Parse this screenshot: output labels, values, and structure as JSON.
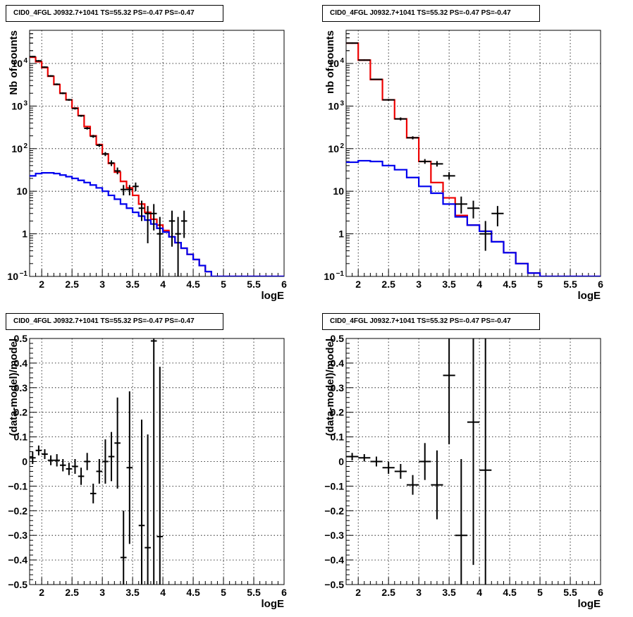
{
  "chart_data": [
    {
      "type": "line",
      "title": "CID0_4FGL J0932.7+1041 TS=55.32 PS=-0.47 PS=-0.47",
      "xlabel": "logE",
      "ylabel": "Nb of counts",
      "xlim": [
        1.8,
        6.0
      ],
      "ylim": [
        0.1,
        60000
      ],
      "yscale": "log",
      "x_ticks": [
        "2",
        "2.5",
        "3",
        "3.5",
        "4",
        "4.5",
        "5",
        "5.5",
        "6"
      ],
      "y_ticks": [
        "10^-1",
        "1",
        "10",
        "10^2",
        "10^3",
        "10^4"
      ],
      "grid": true,
      "bin_edges": [
        1.8,
        1.9,
        2.0,
        2.1,
        2.2,
        2.3,
        2.4,
        2.5,
        2.6,
        2.7,
        2.8,
        2.9,
        3.0,
        3.1,
        3.2,
        3.3,
        3.4,
        3.5,
        3.6,
        3.7,
        3.8,
        3.9,
        4.0,
        4.1,
        4.2,
        4.3,
        4.4,
        4.5,
        4.6,
        4.7,
        4.8,
        4.9,
        5.0,
        5.1,
        5.2,
        5.3,
        5.4,
        5.5,
        5.6,
        5.7,
        5.8,
        5.9,
        6.0
      ],
      "series": [
        {
          "color": "#ee0000",
          "style": "histogram",
          "values": [
            14000,
            11000,
            8000,
            5000,
            3200,
            2000,
            1400,
            900,
            600,
            330,
            200,
            125,
            75,
            45,
            28,
            17,
            12,
            8,
            5,
            3.2,
            2.2,
            1.6,
            1.2,
            0.85,
            0.62,
            0.46,
            0.33,
            0.25,
            0.18,
            0.13,
            0.1,
            0.1,
            0.1,
            0.1,
            0.1,
            0.1,
            0.1,
            0.1,
            0.1,
            0.1,
            0.1,
            0.1
          ]
        },
        {
          "color": "#0000ee",
          "style": "histogram",
          "values": [
            23,
            26,
            27,
            27,
            26,
            24,
            22,
            20,
            18,
            16,
            14,
            12,
            10,
            8,
            6.5,
            5,
            4,
            3.2,
            2.6,
            2.1,
            1.7,
            1.35,
            1.1,
            0.85,
            0.62,
            0.46,
            0.33,
            0.25,
            0.18,
            0.13,
            0.1,
            0.1,
            0.1,
            0.1,
            0.1,
            0.1,
            0.1,
            0.1,
            0.1,
            0.1,
            0.1,
            0.1
          ]
        }
      ],
      "points": [
        {
          "x": 1.85,
          "y": 14500,
          "ylo": 14000,
          "yhi": 15000
        },
        {
          "x": 1.95,
          "y": 11500,
          "ylo": 11000,
          "yhi": 12000
        },
        {
          "x": 2.05,
          "y": 8200,
          "ylo": 7900,
          "yhi": 8500
        },
        {
          "x": 2.15,
          "y": 5100,
          "ylo": 4900,
          "yhi": 5300
        },
        {
          "x": 2.25,
          "y": 3250,
          "ylo": 3100,
          "yhi": 3400
        },
        {
          "x": 2.35,
          "y": 2000,
          "ylo": 1900,
          "yhi": 2100
        },
        {
          "x": 2.45,
          "y": 1400,
          "ylo": 1330,
          "yhi": 1470
        },
        {
          "x": 2.55,
          "y": 880,
          "ylo": 830,
          "yhi": 930
        },
        {
          "x": 2.65,
          "y": 590,
          "ylo": 560,
          "yhi": 620
        },
        {
          "x": 2.75,
          "y": 300,
          "ylo": 280,
          "yhi": 320
        },
        {
          "x": 2.85,
          "y": 195,
          "ylo": 180,
          "yhi": 210
        },
        {
          "x": 2.95,
          "y": 120,
          "ylo": 110,
          "yhi": 130
        },
        {
          "x": 3.05,
          "y": 75,
          "ylo": 67,
          "yhi": 83
        },
        {
          "x": 3.15,
          "y": 46,
          "ylo": 39,
          "yhi": 53
        },
        {
          "x": 3.25,
          "y": 30,
          "ylo": 25,
          "yhi": 36
        },
        {
          "x": 3.35,
          "y": 11,
          "ylo": 8,
          "yhi": 14
        },
        {
          "x": 3.45,
          "y": 11,
          "ylo": 8,
          "yhi": 14
        },
        {
          "x": 3.55,
          "y": 13,
          "ylo": 10,
          "yhi": 16
        },
        {
          "x": 3.65,
          "y": 4,
          "ylo": 2,
          "yhi": 6
        },
        {
          "x": 3.75,
          "y": 3,
          "ylo": 0.6,
          "yhi": 4.5
        },
        {
          "x": 3.85,
          "y": 3,
          "ylo": 1.2,
          "yhi": 5
        },
        {
          "x": 3.95,
          "y": 1,
          "ylo": 0.1,
          "yhi": 2.5
        },
        {
          "x": 4.15,
          "y": 2,
          "ylo": 0.5,
          "yhi": 3.5
        },
        {
          "x": 4.25,
          "y": 1,
          "ylo": 0.1,
          "yhi": 2.5
        },
        {
          "x": 4.35,
          "y": 2,
          "ylo": 0.8,
          "yhi": 3.5
        }
      ]
    },
    {
      "type": "line",
      "title": "CID0_4FGL J0932.7+1041 TS=55.32 PS=-0.47 PS=-0.47",
      "xlabel": "logE",
      "ylabel": "nb of counts",
      "xlim": [
        1.8,
        6.0
      ],
      "ylim": [
        0.1,
        60000
      ],
      "yscale": "log",
      "x_ticks": [
        "2",
        "2.5",
        "3",
        "3.5",
        "4",
        "4.5",
        "5",
        "5.5",
        "6"
      ],
      "y_ticks": [
        "10^-1",
        "1",
        "10",
        "10^2",
        "10^3",
        "10^4"
      ],
      "grid": true,
      "bin_edges": [
        1.8,
        2.0,
        2.2,
        2.4,
        2.6,
        2.8,
        3.0,
        3.2,
        3.4,
        3.6,
        3.8,
        4.0,
        4.2,
        4.4,
        4.6,
        4.8,
        5.0,
        5.2,
        5.4,
        5.6,
        5.8,
        6.0
      ],
      "series": [
        {
          "color": "#ee0000",
          "style": "histogram",
          "values": [
            30000,
            12000,
            4200,
            1400,
            500,
            180,
            50,
            16,
            7,
            2.7,
            1.6,
            1.15,
            0.65,
            0.36,
            0.2,
            0.12,
            0.1,
            0.1,
            0.1,
            0.1,
            0.1
          ]
        },
        {
          "color": "#0000ee",
          "style": "histogram",
          "values": [
            48,
            52,
            50,
            40,
            32,
            21,
            13,
            9,
            5,
            2.5,
            1.6,
            1.15,
            0.65,
            0.36,
            0.2,
            0.12,
            0.1,
            0.1,
            0.1,
            0.1,
            0.1
          ]
        }
      ],
      "points": [
        {
          "x": 1.9,
          "y": 30000,
          "ylo": 29000,
          "yhi": 31000
        },
        {
          "x": 2.1,
          "y": 12000,
          "ylo": 11600,
          "yhi": 12400
        },
        {
          "x": 2.3,
          "y": 4250,
          "ylo": 4100,
          "yhi": 4400
        },
        {
          "x": 2.5,
          "y": 1400,
          "ylo": 1330,
          "yhi": 1470
        },
        {
          "x": 2.7,
          "y": 500,
          "ylo": 460,
          "yhi": 540
        },
        {
          "x": 2.9,
          "y": 180,
          "ylo": 165,
          "yhi": 195
        },
        {
          "x": 3.1,
          "y": 50,
          "ylo": 44,
          "yhi": 57
        },
        {
          "x": 3.3,
          "y": 44,
          "ylo": 38,
          "yhi": 51
        },
        {
          "x": 3.5,
          "y": 23,
          "ylo": 19,
          "yhi": 28
        },
        {
          "x": 3.7,
          "y": 5,
          "ylo": 3,
          "yhi": 7.5
        },
        {
          "x": 3.9,
          "y": 4,
          "ylo": 2.3,
          "yhi": 6
        },
        {
          "x": 4.1,
          "y": 1,
          "ylo": 0.4,
          "yhi": 2
        },
        {
          "x": 4.3,
          "y": 3,
          "ylo": 1.5,
          "yhi": 4.5
        }
      ]
    },
    {
      "type": "scatter",
      "title": "CID0_4FGL J0932.7+1041 TS=55.32 PS=-0.47 PS=-0.47",
      "xlabel": "logE",
      "ylabel": "(data-model)/model",
      "xlim": [
        1.8,
        6.0
      ],
      "ylim": [
        -0.5,
        0.5
      ],
      "x_ticks": [
        "2",
        "2.5",
        "3",
        "3.5",
        "4",
        "4.5",
        "5",
        "5.5",
        "6"
      ],
      "y_ticks": [
        "−0.5",
        "−0.4",
        "−0.3",
        "−0.2",
        "−0.1",
        "0",
        "0.1",
        "0.2",
        "0.3",
        "0.4",
        "0.5"
      ],
      "grid": true,
      "xerr": 0.05,
      "points": [
        {
          "x": 1.85,
          "y": 0.015,
          "yerr": 0.025
        },
        {
          "x": 1.95,
          "y": 0.045,
          "yerr": 0.02
        },
        {
          "x": 2.05,
          "y": 0.03,
          "yerr": 0.02
        },
        {
          "x": 2.15,
          "y": 0.005,
          "yerr": 0.02
        },
        {
          "x": 2.25,
          "y": 0.005,
          "yerr": 0.025
        },
        {
          "x": 2.35,
          "y": -0.015,
          "yerr": 0.025
        },
        {
          "x": 2.45,
          "y": -0.03,
          "yerr": 0.025
        },
        {
          "x": 2.55,
          "y": -0.02,
          "yerr": 0.03
        },
        {
          "x": 2.65,
          "y": -0.06,
          "yerr": 0.035
        },
        {
          "x": 2.75,
          "y": 0.0,
          "yerr": 0.035
        },
        {
          "x": 2.85,
          "y": -0.13,
          "yerr": 0.04
        },
        {
          "x": 2.95,
          "y": -0.04,
          "yerr": 0.05
        },
        {
          "x": 3.05,
          "y": 0.0,
          "yerr": 0.09
        },
        {
          "x": 3.15,
          "y": 0.02,
          "yerr": 0.1
        },
        {
          "x": 3.25,
          "y": 0.075,
          "yerr": 0.185
        },
        {
          "x": 3.35,
          "y": -0.39,
          "yerr": 0.19
        },
        {
          "x": 3.45,
          "y": -0.025,
          "yerr": 0.31
        },
        {
          "x": 3.65,
          "y": -0.26,
          "yerr": 0.43
        },
        {
          "x": 3.75,
          "y": -0.35,
          "yerr": 0.46
        },
        {
          "x": 3.85,
          "y": 0.49,
          "yerr": 0.99
        },
        {
          "x": 3.95,
          "y": -0.305,
          "yerr": 0.69
        }
      ]
    },
    {
      "type": "scatter",
      "title": "CID0_4FGL J0932.7+1041 TS=55.32 PS=-0.47 PS=-0.47",
      "xlabel": "logE",
      "ylabel": "(data-model)/model",
      "xlim": [
        1.8,
        6.0
      ],
      "ylim": [
        -0.5,
        0.5
      ],
      "x_ticks": [
        "2",
        "2.5",
        "3",
        "3.5",
        "4",
        "4.5",
        "5",
        "5.5",
        "6"
      ],
      "y_ticks": [
        "−0.5",
        "−0.4",
        "−0.3",
        "−0.2",
        "−0.1",
        "0",
        "0.1",
        "0.2",
        "0.3",
        "0.4",
        "0.5"
      ],
      "grid": true,
      "xerr": 0.1,
      "points": [
        {
          "x": 1.9,
          "y": 0.02,
          "yerr": 0.015
        },
        {
          "x": 2.1,
          "y": 0.015,
          "yerr": 0.015
        },
        {
          "x": 2.3,
          "y": 0.0,
          "yerr": 0.02
        },
        {
          "x": 2.5,
          "y": -0.025,
          "yerr": 0.025
        },
        {
          "x": 2.7,
          "y": -0.04,
          "yerr": 0.03
        },
        {
          "x": 2.9,
          "y": -0.095,
          "yerr": 0.04
        },
        {
          "x": 3.1,
          "y": 0.0,
          "yerr": 0.075
        },
        {
          "x": 3.3,
          "y": -0.095,
          "yerr": 0.14
        },
        {
          "x": 3.5,
          "y": 0.35,
          "yerr": 0.28
        },
        {
          "x": 3.7,
          "y": -0.3,
          "yerr": 0.31
        },
        {
          "x": 3.9,
          "y": 0.16,
          "yerr": 0.58
        },
        {
          "x": 4.1,
          "y": -0.035,
          "yerr": 0.7
        }
      ]
    }
  ]
}
